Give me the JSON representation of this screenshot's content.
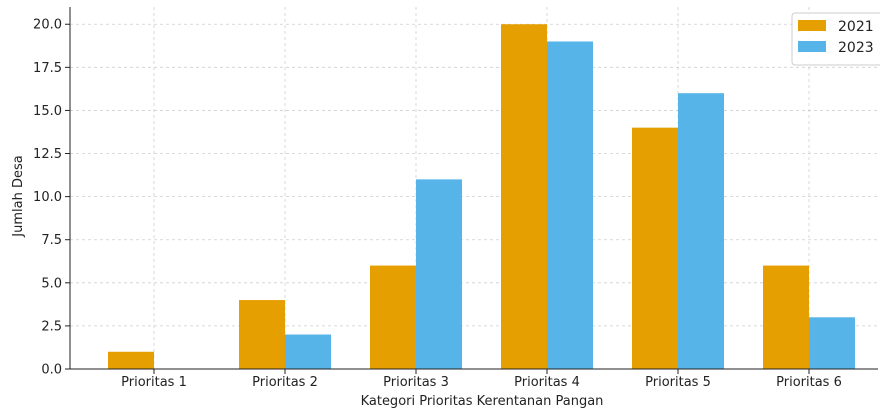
{
  "chart_data": {
    "type": "bar",
    "title": "",
    "xlabel": "Kategori Prioritas Kerentanan Pangan",
    "ylabel": "Jumlah Desa",
    "categories": [
      "Prioritas 1",
      "Prioritas 2",
      "Prioritas 3",
      "Prioritas 4",
      "Prioritas 5",
      "Prioritas 6"
    ],
    "series": [
      {
        "name": "2021",
        "values": [
          1,
          4,
          6,
          20,
          14,
          6
        ],
        "color": "#E69F00"
      },
      {
        "name": "2023",
        "values": [
          0,
          2,
          11,
          19,
          16,
          3
        ],
        "color": "#56B4E9"
      }
    ],
    "ylim": [
      0,
      21
    ],
    "yticks": [
      "0.0",
      "2.5",
      "5.0",
      "7.5",
      "10.0",
      "12.5",
      "15.0",
      "17.5",
      "20.0"
    ],
    "grid": true,
    "legend": "top-right"
  }
}
